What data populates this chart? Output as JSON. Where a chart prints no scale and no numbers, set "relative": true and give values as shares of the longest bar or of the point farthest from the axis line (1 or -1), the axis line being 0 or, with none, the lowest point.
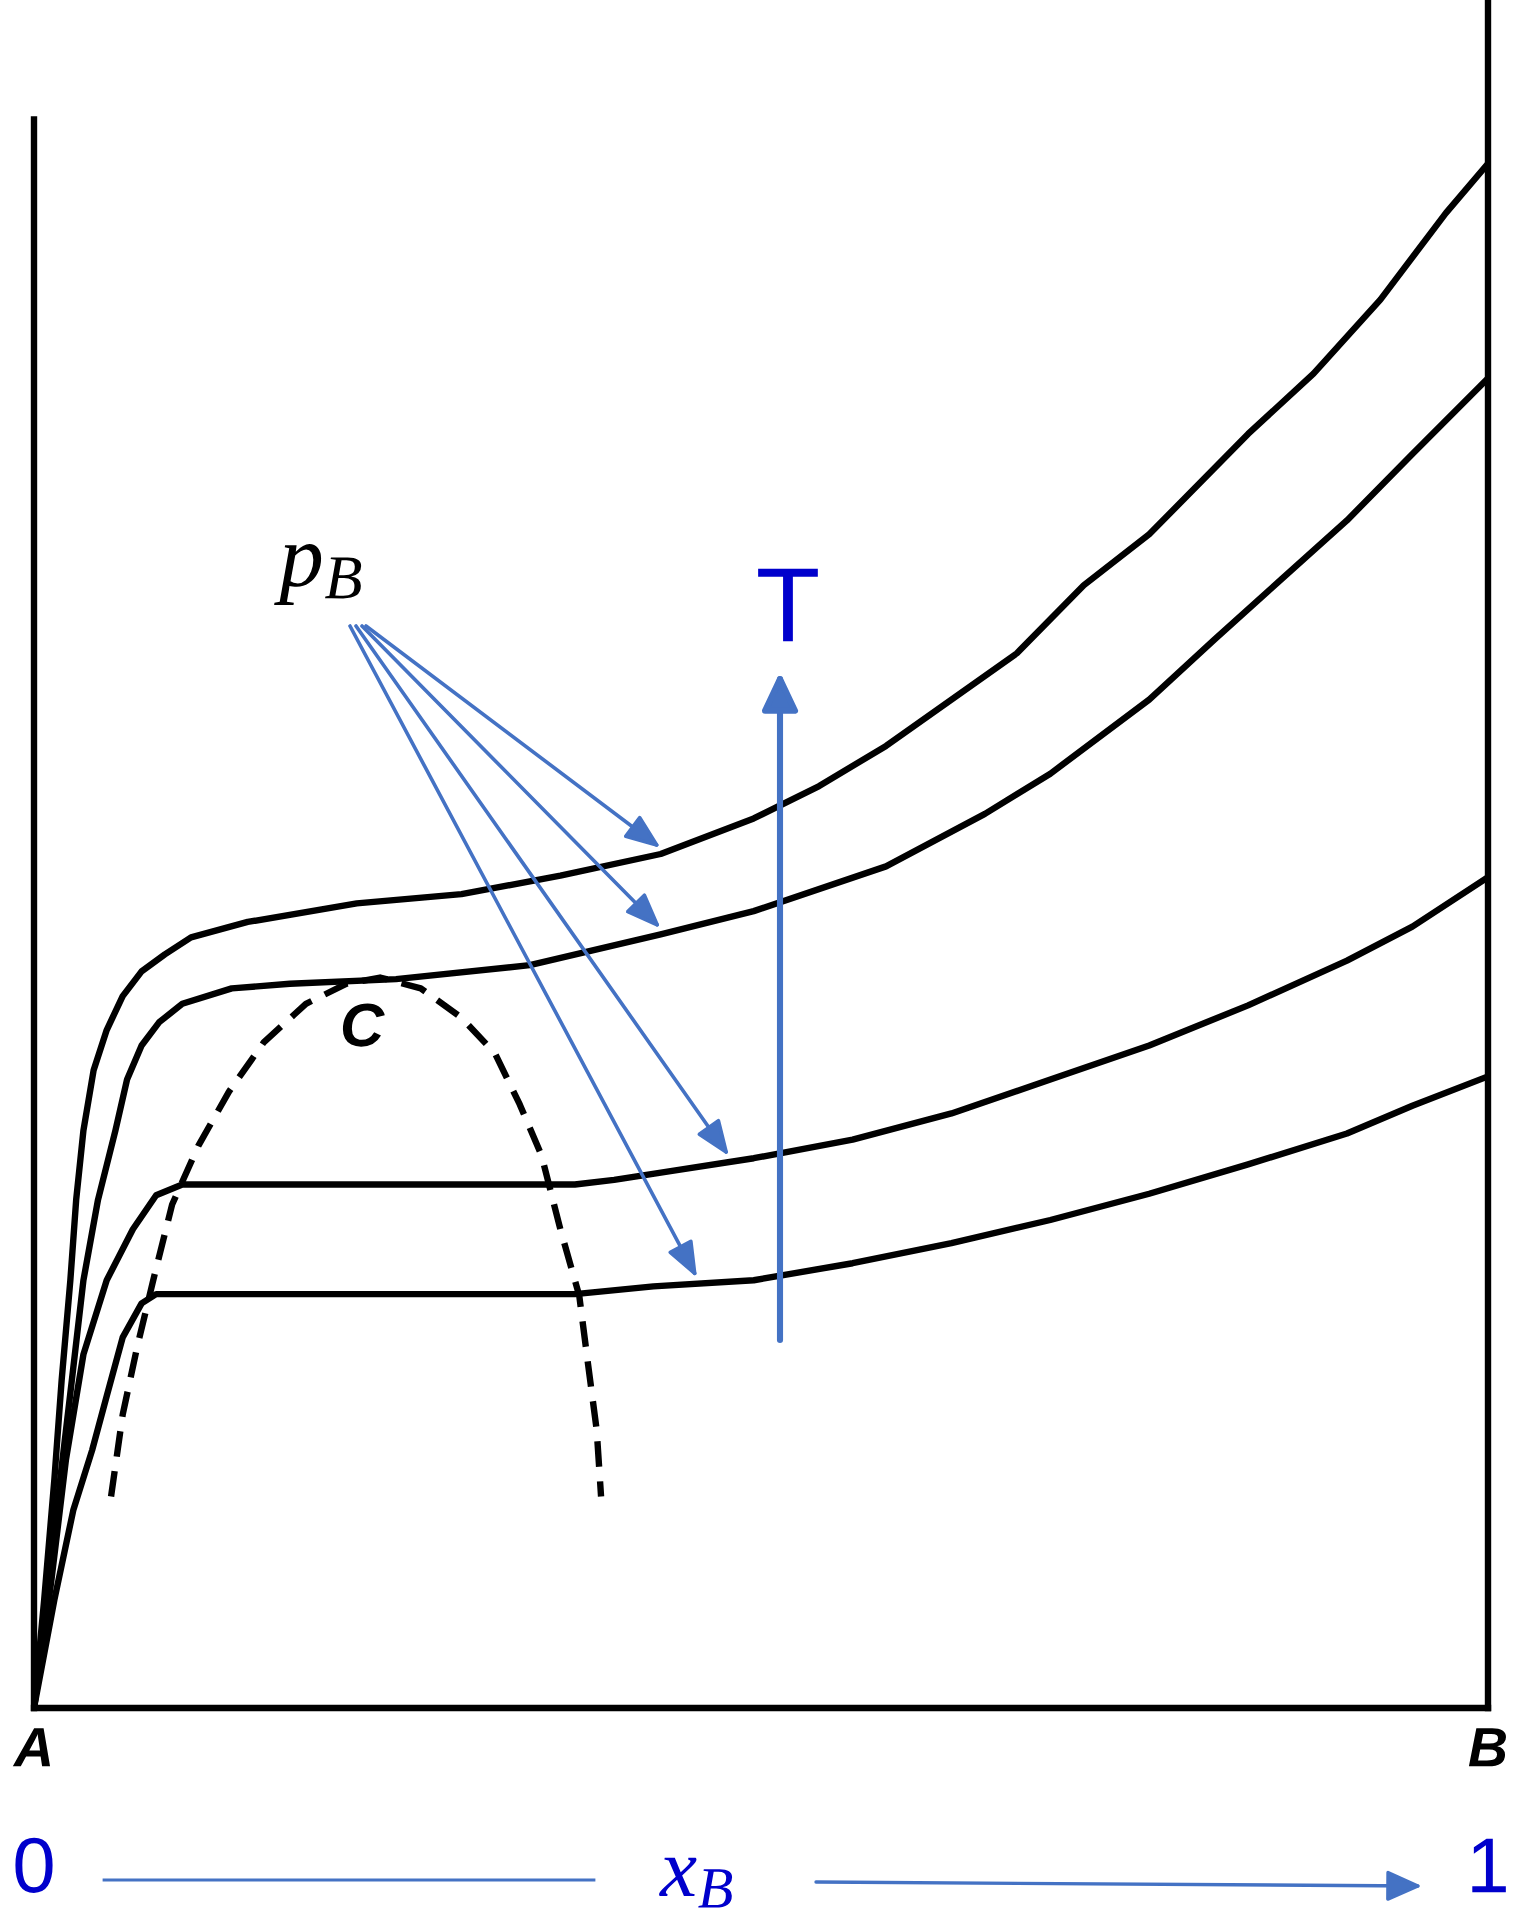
{
  "chart_data": {
    "type": "line",
    "relative": true,
    "xlabel": "x$_{B}$",
    "xlim": [
      0,
      1
    ],
    "xticks": [
      0,
      1
    ],
    "tick_labels": "x",
    "line_style": "solid",
    "series": [
      {
        "color": "#000000",
        "x": [
          0,
          0.007,
          0.014,
          0.019,
          0.025,
          0.029,
          0.034,
          0.041,
          0.05,
          0.061,
          0.074,
          0.09,
          0.108,
          0.147,
          0.222,
          0.294,
          0.362,
          0.431,
          0.495,
          0.54,
          0.586,
          0.631,
          0.676,
          0.722,
          0.767,
          0.835,
          0.88,
          0.926,
          0.971,
          1
        ],
        "values": [
          0,
          0.07,
          0.148,
          0.212,
          0.277,
          0.329,
          0.374,
          0.413,
          0.439,
          0.461,
          0.477,
          0.488,
          0.499,
          0.509,
          0.521,
          0.527,
          0.539,
          0.553,
          0.576,
          0.597,
          0.623,
          0.653,
          0.683,
          0.727,
          0.76,
          0.825,
          0.864,
          0.912,
          0.968,
          1
        ]
      },
      {
        "color": "#000000",
        "x": [
          0,
          0.01,
          0.018,
          0.026,
          0.034,
          0.044,
          0.056,
          0.064,
          0.074,
          0.086,
          0.102,
          0.136,
          0.176,
          0.249,
          0.341,
          0.431,
          0.495,
          0.586,
          0.654,
          0.699,
          0.767,
          0.812,
          0.858,
          0.903,
          0.948,
          1
        ],
        "values": [
          0,
          0.07,
          0.148,
          0.212,
          0.277,
          0.329,
          0.374,
          0.407,
          0.429,
          0.444,
          0.456,
          0.466,
          0.469,
          0.472,
          0.481,
          0.501,
          0.516,
          0.545,
          0.579,
          0.605,
          0.653,
          0.692,
          0.731,
          0.769,
          0.812,
          0.861
        ]
      },
      {
        "color": "#000000",
        "x": [
          0,
          0.012,
          0.022,
          0.034,
          0.05,
          0.068,
          0.084,
          0.102,
          0.372,
          0.399,
          0.44,
          0.495,
          0.563,
          0.631,
          0.699,
          0.767,
          0.835,
          0.903,
          0.948,
          1
        ],
        "values": [
          0,
          0.083,
          0.161,
          0.229,
          0.277,
          0.31,
          0.332,
          0.339,
          0.339,
          0.342,
          0.348,
          0.356,
          0.368,
          0.385,
          0.407,
          0.429,
          0.455,
          0.484,
          0.506,
          0.538
        ]
      },
      {
        "color": "#000000",
        "x": [
          0,
          0.014,
          0.027,
          0.04,
          0.05,
          0.061,
          0.074,
          0.084,
          0.372,
          0.426,
          0.495,
          0.563,
          0.631,
          0.699,
          0.767,
          0.835,
          0.903,
          0.948,
          1
        ],
        "values": [
          0,
          0.07,
          0.128,
          0.167,
          0.202,
          0.24,
          0.262,
          0.268,
          0.268,
          0.273,
          0.277,
          0.288,
          0.301,
          0.316,
          0.333,
          0.352,
          0.372,
          0.39,
          0.409
        ]
      },
      {
        "color": "#000000",
        "line_style": "dashed",
        "x": [
          0.053,
          0.061,
          0.071,
          0.082,
          0.095,
          0.113,
          0.134,
          0.158,
          0.187,
          0.215,
          0.238,
          0.266,
          0.294,
          0.317,
          0.334,
          0.349,
          0.362,
          0.375,
          0.381,
          0.387,
          0.39
        ],
        "values": [
          0.137,
          0.19,
          0.234,
          0.277,
          0.326,
          0.364,
          0.399,
          0.431,
          0.456,
          0.469,
          0.473,
          0.466,
          0.447,
          0.424,
          0.391,
          0.358,
          0.31,
          0.267,
          0.223,
          0.18,
          0.137
        ]
      }
    ],
    "annotations": [
      "p$_{B}$",
      "T",
      "A",
      "B",
      {
        "text": "C",
        "x": 0.238,
        "y": 0.473
      }
    ]
  }
}
